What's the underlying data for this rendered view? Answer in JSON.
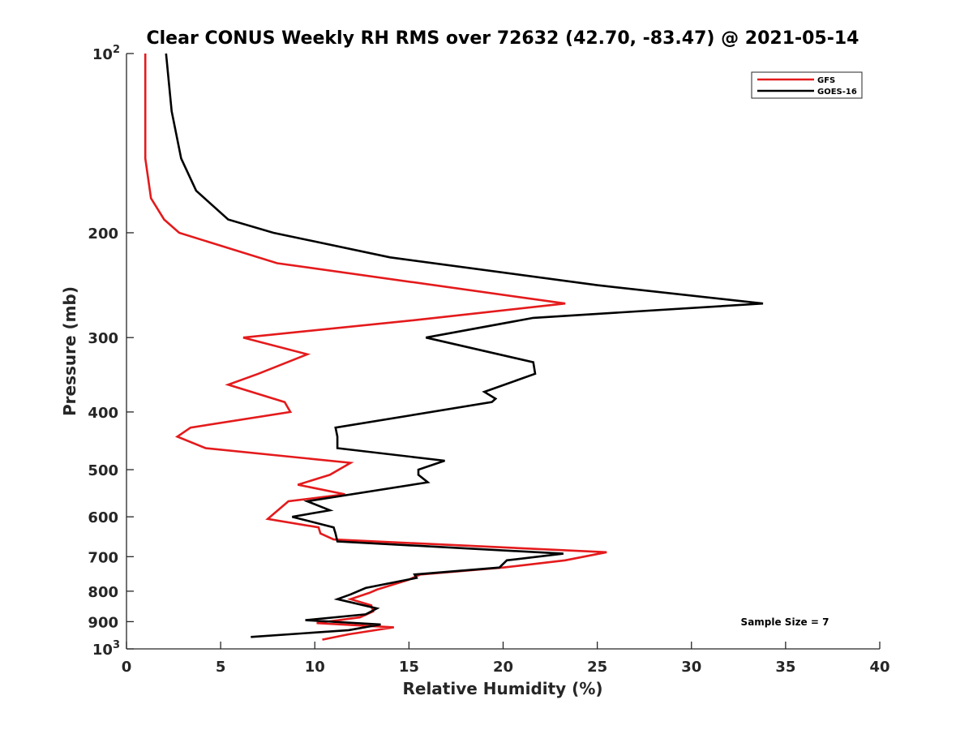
{
  "chart_data": {
    "type": "line",
    "title": "Clear CONUS Weekly RH RMS over 72632 (42.70, -83.47) @ 2021-05-14",
    "xlabel": "Relative Humidity (%)",
    "ylabel": "Pressure (mb)",
    "xlim": [
      0,
      40
    ],
    "ylim": [
      100,
      1000
    ],
    "yscale": "log",
    "y_reversed": true,
    "grid": false,
    "legend_position": "top-right",
    "x_ticks": [
      0,
      5,
      10,
      15,
      20,
      25,
      30,
      35,
      40
    ],
    "y_ticks": [
      {
        "value": 100,
        "label": "10",
        "exp": "2"
      },
      {
        "value": 200,
        "label": "200"
      },
      {
        "value": 300,
        "label": "300"
      },
      {
        "value": 400,
        "label": "400"
      },
      {
        "value": 500,
        "label": "500"
      },
      {
        "value": 600,
        "label": "600"
      },
      {
        "value": 700,
        "label": "700"
      },
      {
        "value": 800,
        "label": "800"
      },
      {
        "value": 900,
        "label": "900"
      },
      {
        "value": 1000,
        "label": "10",
        "exp": "3"
      }
    ],
    "series": [
      {
        "name": "GFS",
        "color": "#e41a1c",
        "points": [
          [
            1.0,
            100
          ],
          [
            1.0,
            125
          ],
          [
            1.0,
            150
          ],
          [
            1.3,
            175
          ],
          [
            2.0,
            190
          ],
          [
            2.8,
            200
          ],
          [
            8.0,
            225
          ],
          [
            23.3,
            263
          ],
          [
            15.5,
            280
          ],
          [
            6.2,
            300
          ],
          [
            9.6,
            320
          ],
          [
            7.0,
            345
          ],
          [
            5.4,
            360
          ],
          [
            8.4,
            385
          ],
          [
            8.7,
            400
          ],
          [
            3.4,
            425
          ],
          [
            2.7,
            440
          ],
          [
            4.2,
            460
          ],
          [
            11.9,
            487
          ],
          [
            10.8,
            510
          ],
          [
            9.1,
            530
          ],
          [
            11.6,
            550
          ],
          [
            8.6,
            565
          ],
          [
            7.5,
            605
          ],
          [
            10.2,
            625
          ],
          [
            10.3,
            640
          ],
          [
            11.0,
            655
          ],
          [
            25.5,
            688
          ],
          [
            23.3,
            710
          ],
          [
            20.0,
            730
          ],
          [
            15.6,
            750
          ],
          [
            15.0,
            765
          ],
          [
            13.3,
            795
          ],
          [
            12.9,
            805
          ],
          [
            11.9,
            825
          ],
          [
            13.0,
            845
          ],
          [
            13.1,
            865
          ],
          [
            12.4,
            885
          ],
          [
            10.1,
            905
          ],
          [
            14.2,
            920
          ],
          [
            11.8,
            945
          ],
          [
            10.4,
            965
          ]
        ]
      },
      {
        "name": "GOES-16",
        "color": "#000000",
        "points": [
          [
            2.1,
            100
          ],
          [
            2.4,
            125
          ],
          [
            2.9,
            150
          ],
          [
            3.7,
            170
          ],
          [
            5.4,
            190
          ],
          [
            7.8,
            200
          ],
          [
            14.0,
            220
          ],
          [
            25.0,
            245
          ],
          [
            33.8,
            263
          ],
          [
            21.6,
            278
          ],
          [
            15.9,
            300
          ],
          [
            21.6,
            330
          ],
          [
            21.7,
            345
          ],
          [
            19.0,
            370
          ],
          [
            19.6,
            380
          ],
          [
            19.4,
            385
          ],
          [
            11.1,
            425
          ],
          [
            11.2,
            440
          ],
          [
            11.2,
            460
          ],
          [
            16.9,
            483
          ],
          [
            15.5,
            500
          ],
          [
            15.5,
            510
          ],
          [
            16.0,
            525
          ],
          [
            9.6,
            565
          ],
          [
            10.8,
            585
          ],
          [
            8.8,
            600
          ],
          [
            11.0,
            625
          ],
          [
            11.1,
            640
          ],
          [
            11.2,
            660
          ],
          [
            23.2,
            692
          ],
          [
            20.2,
            710
          ],
          [
            19.8,
            730
          ],
          [
            15.3,
            750
          ],
          [
            15.4,
            760
          ],
          [
            12.7,
            790
          ],
          [
            11.9,
            810
          ],
          [
            11.2,
            825
          ],
          [
            13.3,
            855
          ],
          [
            12.7,
            875
          ],
          [
            9.5,
            895
          ],
          [
            13.5,
            910
          ],
          [
            11.8,
            930
          ],
          [
            6.6,
            955
          ]
        ]
      }
    ],
    "annotations": {
      "sample_size": "Sample Size = 7"
    }
  }
}
